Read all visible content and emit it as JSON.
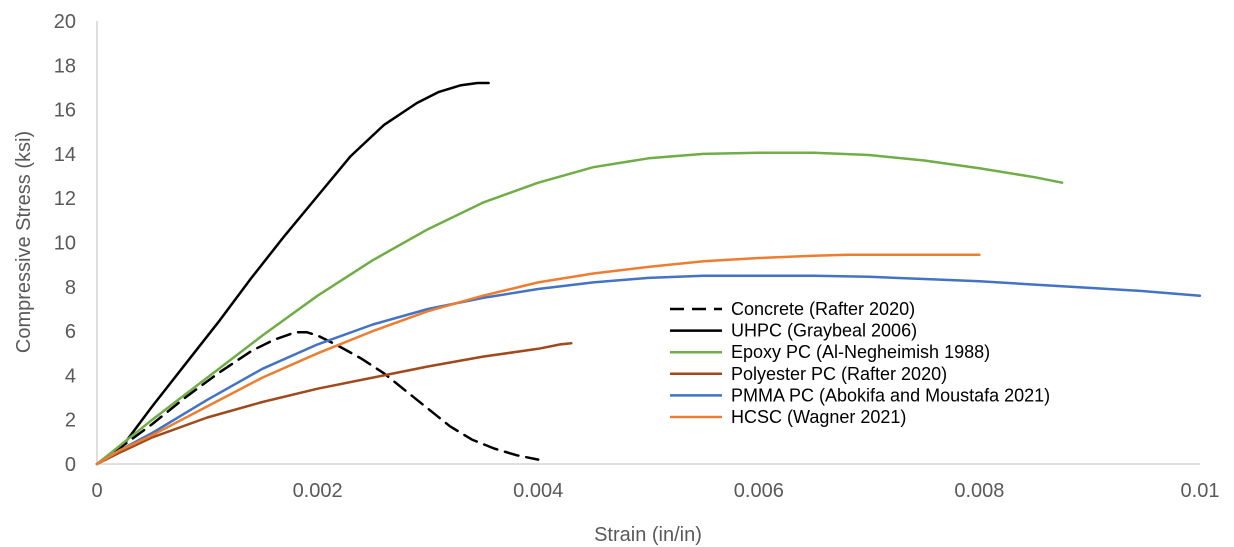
{
  "chart_data": {
    "type": "line",
    "xlabel": "Strain (in/in)",
    "ylabel": "Compressive Stress (ksi)",
    "xlim": [
      0,
      0.01
    ],
    "ylim": [
      0,
      20
    ],
    "x_ticks": [
      0,
      0.002,
      0.004,
      0.006,
      0.008,
      0.01
    ],
    "x_tick_labels": [
      "0",
      "0.002",
      "0.004",
      "0.006",
      "0.008",
      "0.01"
    ],
    "y_ticks": [
      0,
      2,
      4,
      6,
      8,
      10,
      12,
      14,
      16,
      18,
      20
    ],
    "y_tick_labels": [
      "0",
      "2",
      "4",
      "6",
      "8",
      "10",
      "12",
      "14",
      "16",
      "18",
      "20"
    ],
    "grid": false,
    "legend_position": "lower-right",
    "series": [
      {
        "name": "Concrete (Rafter 2020)",
        "color": "#000000",
        "dash": "dashed",
        "x": [
          0,
          0.0002,
          0.0005,
          0.0008,
          0.0011,
          0.0014,
          0.0016,
          0.0018,
          0.0019,
          0.002,
          0.0022,
          0.0024,
          0.0026,
          0.0028,
          0.003,
          0.0032,
          0.0034,
          0.0036,
          0.0038,
          0.004
        ],
        "y": [
          0,
          0.7,
          1.8,
          3.0,
          4.1,
          5.1,
          5.6,
          5.95,
          5.95,
          5.8,
          5.3,
          4.75,
          4.1,
          3.3,
          2.5,
          1.7,
          1.1,
          0.7,
          0.4,
          0.2
        ]
      },
      {
        "name": "UHPC (Graybeal 2006)",
        "color": "#000000",
        "dash": "solid",
        "x": [
          0,
          0.0002,
          0.0005,
          0.0008,
          0.0011,
          0.0014,
          0.0017,
          0.002,
          0.0023,
          0.0026,
          0.0029,
          0.0031,
          0.0033,
          0.00345,
          0.0035,
          0.00355
        ],
        "y": [
          0,
          0.6,
          2.6,
          4.5,
          6.4,
          8.4,
          10.3,
          12.1,
          13.9,
          15.3,
          16.3,
          16.8,
          17.1,
          17.2,
          17.2,
          17.2
        ]
      },
      {
        "name": "Epoxy PC (Al-Negheimish 1988)",
        "color": "#70AD47",
        "dash": "solid",
        "x": [
          0,
          0.0002,
          0.0005,
          0.001,
          0.0015,
          0.002,
          0.0025,
          0.003,
          0.0035,
          0.004,
          0.0045,
          0.005,
          0.0055,
          0.006,
          0.0065,
          0.007,
          0.0075,
          0.008,
          0.0085,
          0.00875
        ],
        "y": [
          0,
          0.8,
          2.0,
          3.9,
          5.8,
          7.6,
          9.2,
          10.6,
          11.8,
          12.7,
          13.4,
          13.8,
          14.0,
          14.05,
          14.05,
          13.95,
          13.7,
          13.35,
          12.95,
          12.7
        ]
      },
      {
        "name": "Polyester PC (Rafter 2020)",
        "color": "#A0491B",
        "dash": "solid",
        "x": [
          0,
          0.0002,
          0.0005,
          0.001,
          0.0015,
          0.002,
          0.0025,
          0.003,
          0.0035,
          0.004,
          0.0042,
          0.0043
        ],
        "y": [
          0,
          0.5,
          1.2,
          2.1,
          2.8,
          3.4,
          3.9,
          4.4,
          4.85,
          5.2,
          5.4,
          5.45
        ]
      },
      {
        "name": "PMMA PC (Abokifa and Moustafa 2021)",
        "color": "#4472C4",
        "dash": "solid",
        "x": [
          0,
          0.0002,
          0.0005,
          0.001,
          0.0015,
          0.002,
          0.0025,
          0.003,
          0.0035,
          0.004,
          0.0045,
          0.005,
          0.0055,
          0.006,
          0.0065,
          0.007,
          0.0075,
          0.008,
          0.0085,
          0.009,
          0.0095,
          0.01
        ],
        "y": [
          0,
          0.6,
          1.4,
          2.9,
          4.3,
          5.4,
          6.3,
          7.0,
          7.5,
          7.9,
          8.2,
          8.4,
          8.5,
          8.5,
          8.5,
          8.45,
          8.35,
          8.25,
          8.1,
          7.95,
          7.8,
          7.6
        ]
      },
      {
        "name": "HCSC (Wagner 2021)",
        "color": "#ED7D31",
        "dash": "solid",
        "x": [
          0,
          0.0002,
          0.0005,
          0.001,
          0.0015,
          0.002,
          0.0025,
          0.003,
          0.0035,
          0.004,
          0.0045,
          0.005,
          0.0055,
          0.006,
          0.0065,
          0.0068,
          0.007,
          0.0075,
          0.008
        ],
        "y": [
          0,
          0.6,
          1.3,
          2.6,
          3.9,
          5.0,
          6.0,
          6.9,
          7.6,
          8.2,
          8.6,
          8.9,
          9.15,
          9.3,
          9.4,
          9.45,
          9.45,
          9.45,
          9.45
        ]
      }
    ]
  }
}
